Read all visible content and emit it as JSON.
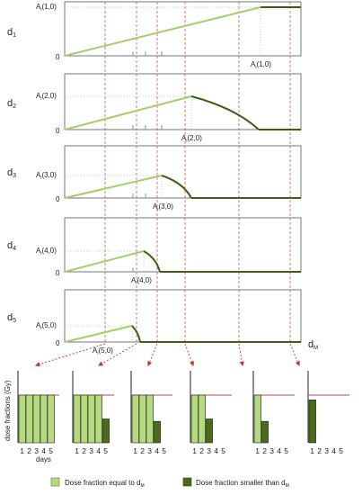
{
  "panels": [
    {
      "row_label": "d",
      "row_sub": "1",
      "top_label_main": "A",
      "top_label_sub": "i",
      "top_label_arg": "(1,0)",
      "bottom_label_main": "A",
      "bottom_label_sub": "i",
      "bottom_label_arg": "(1,0)",
      "origin_label": "0"
    },
    {
      "row_label": "d",
      "row_sub": "2",
      "top_label_main": "A",
      "top_label_sub": "i",
      "top_label_arg": "(2,0)",
      "bottom_label_main": "A",
      "bottom_label_sub": "i",
      "bottom_label_arg": "(2,0)",
      "origin_label": "0"
    },
    {
      "row_label": "d",
      "row_sub": "3",
      "top_label_main": "A",
      "top_label_sub": "i",
      "top_label_arg": "(3,0)",
      "bottom_label_main": "A",
      "bottom_label_sub": "i",
      "bottom_label_arg": "(3,0)",
      "origin_label": "0"
    },
    {
      "row_label": "d",
      "row_sub": "4",
      "top_label_main": "A",
      "top_label_sub": "i",
      "top_label_arg": "(4,0)",
      "bottom_label_main": "A",
      "bottom_label_sub": "i",
      "bottom_label_arg": "(4,0)",
      "origin_label": "0"
    },
    {
      "row_label": "d",
      "row_sub": "5",
      "top_label_main": "A",
      "top_label_sub": "i",
      "top_label_arg": "(5,0)",
      "bottom_label_main": "A",
      "bottom_label_sub": "i",
      "bottom_label_arg": "(5,0)",
      "origin_label": "0"
    }
  ],
  "dm_label_main": "d",
  "dm_label_sub": "M",
  "bar_panel_ylabel": "dose fractions (Gy)",
  "bar_panel_ticks": [
    "1",
    "2",
    "3",
    "4",
    "5"
  ],
  "bar_panel_xlabel": "days",
  "bar_panels": [
    {
      "light": [
        1,
        1,
        1,
        1,
        1
      ],
      "dark": [
        0,
        0,
        0,
        0,
        0
      ]
    },
    {
      "light": [
        1,
        1,
        1,
        1,
        0
      ],
      "dark": [
        0,
        0,
        0,
        0,
        0.5
      ]
    },
    {
      "light": [
        1,
        1,
        1,
        0,
        0
      ],
      "dark": [
        0,
        0,
        0,
        0.45,
        0
      ]
    },
    {
      "light": [
        1,
        1,
        0,
        0,
        0
      ],
      "dark": [
        0,
        0,
        0.5,
        0,
        0
      ]
    },
    {
      "light": [
        1,
        0,
        0,
        0,
        0
      ],
      "dark": [
        0,
        0.45,
        0,
        0,
        0
      ]
    },
    {
      "light": [
        0,
        0,
        0,
        0,
        0
      ],
      "dark": [
        0.9,
        0,
        0,
        0,
        0
      ]
    }
  ],
  "legend": [
    {
      "label_main": "Dose fraction equal to d",
      "label_sub": "M",
      "color": "#b5d97e"
    },
    {
      "label_main": "Dose fraction smaller than d",
      "label_sub": "M",
      "color": "#4a6b1c"
    }
  ],
  "colors": {
    "light_green": "#b5d97e",
    "dark_green": "#4a6b1c",
    "red_line": "#b84a4a",
    "dashed_red": "#d9534f",
    "frame": "#777777"
  }
}
